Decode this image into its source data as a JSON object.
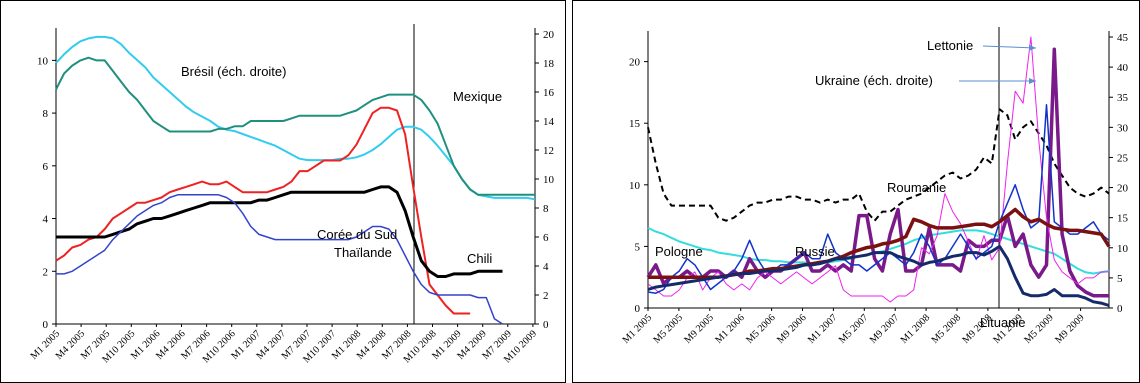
{
  "chart_data": [
    {
      "type": "line",
      "title": "",
      "xlabel": "",
      "ylabel": "",
      "ylim": [
        0,
        11
      ],
      "y2lim": [
        0,
        20
      ],
      "yticks": [
        0,
        2,
        4,
        6,
        8,
        10
      ],
      "y2ticks": [
        0,
        2,
        4,
        6,
        8,
        10,
        12,
        14,
        16,
        18,
        20
      ],
      "x_tick_labels": [
        "M1 2005",
        "M4 2005",
        "M7 2005",
        "M10 2005",
        "M1 2006",
        "M4 2006",
        "M7 2006",
        "M10 2006",
        "M1 2007",
        "M4 2007",
        "M7 2007",
        "M10 2007",
        "M1 2008",
        "M4 2008",
        "M7 2008",
        "M10 2008",
        "M1 2009",
        "M4 2009",
        "M7 2009",
        "M10 2009"
      ],
      "vertical_marker": "M9 2008",
      "grid": false,
      "series": [
        {
          "name": "Brésil (éch. droite)",
          "axis": "right",
          "color": "#33ccee",
          "width": 2,
          "values": [
            18.0,
            18.6,
            19.1,
            19.5,
            19.7,
            19.8,
            19.8,
            19.7,
            19.3,
            18.7,
            18.2,
            17.7,
            17.0,
            16.5,
            16.0,
            15.5,
            15.0,
            14.6,
            14.3,
            14.0,
            13.6,
            13.4,
            13.3,
            13.1,
            12.9,
            12.7,
            12.5,
            12.3,
            12.0,
            11.7,
            11.4,
            11.3,
            11.3,
            11.3,
            11.3,
            11.4,
            11.4,
            11.5,
            11.7,
            12.0,
            12.4,
            12.9,
            13.4,
            13.6,
            13.6,
            13.4,
            12.9,
            12.3,
            11.6,
            10.9,
            10.0,
            9.3,
            8.9,
            8.8,
            8.7,
            8.7,
            8.7,
            8.7,
            8.7,
            8.6
          ]
        },
        {
          "name": "Mexique",
          "axis": "left",
          "color": "#20907e",
          "width": 2,
          "values": [
            8.9,
            9.5,
            9.8,
            10.0,
            10.1,
            10.0,
            10.0,
            9.6,
            9.2,
            8.8,
            8.5,
            8.1,
            7.7,
            7.5,
            7.3,
            7.3,
            7.3,
            7.3,
            7.3,
            7.3,
            7.4,
            7.4,
            7.5,
            7.5,
            7.7,
            7.7,
            7.7,
            7.7,
            7.7,
            7.8,
            7.9,
            7.9,
            7.9,
            7.9,
            7.9,
            7.9,
            8.0,
            8.1,
            8.3,
            8.5,
            8.6,
            8.7,
            8.7,
            8.7,
            8.7,
            8.5,
            8.1,
            7.6,
            6.8,
            6.0,
            5.5,
            5.1,
            4.9,
            4.9,
            4.9,
            4.9,
            4.9,
            4.9,
            4.9,
            4.9
          ]
        },
        {
          "name": "Chili",
          "axis": "left",
          "color": "#ee2222",
          "width": 2,
          "values": [
            2.4,
            2.6,
            2.9,
            3.0,
            3.2,
            3.3,
            3.6,
            4.0,
            4.2,
            4.4,
            4.6,
            4.6,
            4.7,
            4.8,
            5.0,
            5.1,
            5.2,
            5.3,
            5.4,
            5.3,
            5.3,
            5.4,
            5.2,
            5.0,
            5.0,
            5.0,
            5.0,
            5.1,
            5.2,
            5.4,
            5.8,
            5.8,
            6.0,
            6.2,
            6.2,
            6.2,
            6.4,
            6.8,
            7.4,
            8.0,
            8.2,
            8.2,
            8.1,
            7.2,
            5.2,
            3.3,
            1.5,
            1.1,
            0.7,
            0.4,
            0.4,
            0.4
          ]
        },
        {
          "name": "Corée du Sud",
          "axis": "left",
          "color": "#000000",
          "width": 3,
          "values": [
            3.3,
            3.3,
            3.3,
            3.3,
            3.3,
            3.3,
            3.3,
            3.4,
            3.5,
            3.6,
            3.8,
            3.9,
            4.0,
            4.0,
            4.1,
            4.2,
            4.3,
            4.4,
            4.5,
            4.6,
            4.6,
            4.6,
            4.6,
            4.6,
            4.6,
            4.7,
            4.7,
            4.8,
            4.9,
            5.0,
            5.0,
            5.0,
            5.0,
            5.0,
            5.0,
            5.0,
            5.0,
            5.0,
            5.0,
            5.1,
            5.2,
            5.2,
            5.0,
            4.3,
            3.3,
            2.4,
            2.0,
            1.8,
            1.8,
            1.9,
            1.9,
            1.9,
            2.0,
            2.0,
            2.0,
            2.0
          ]
        },
        {
          "name": "Thaïlande",
          "axis": "left",
          "color": "#3344cc",
          "width": 1.5,
          "values": [
            1.9,
            1.9,
            2.0,
            2.2,
            2.4,
            2.6,
            2.8,
            3.2,
            3.5,
            3.8,
            4.1,
            4.3,
            4.5,
            4.6,
            4.8,
            4.9,
            4.9,
            4.9,
            4.9,
            4.9,
            4.9,
            4.8,
            4.6,
            4.2,
            3.7,
            3.4,
            3.3,
            3.2,
            3.2,
            3.2,
            3.2,
            3.2,
            3.2,
            3.2,
            3.2,
            3.2,
            3.2,
            3.3,
            3.5,
            3.7,
            3.7,
            3.6,
            3.2,
            2.6,
            2.0,
            1.5,
            1.2,
            1.1,
            1.1,
            1.1,
            1.1,
            1.1,
            1.0,
            1.0,
            0.2,
            0.0
          ]
        }
      ],
      "annotations": [
        "Brésil (éch. droite)",
        "Mexique",
        "Corée du Sud",
        "Thaïlande",
        "Chili"
      ]
    },
    {
      "type": "line",
      "title": "",
      "xlabel": "",
      "ylabel": "",
      "ylim": [
        0,
        22
      ],
      "y2lim": [
        0,
        45
      ],
      "yticks": [
        0,
        5,
        10,
        15,
        20
      ],
      "y2ticks": [
        0,
        5,
        10,
        15,
        20,
        25,
        30,
        35,
        40,
        45
      ],
      "x_tick_labels": [
        "M1 2005",
        "M5 2005",
        "M9 2005",
        "M1 2006",
        "M5 2006",
        "M9 2006",
        "M1 2007",
        "M5 2007",
        "M9 2007",
        "M1 2008",
        "M5 2008",
        "M9 2008",
        "M1 2009",
        "M5 2009",
        "M9 2009"
      ],
      "vertical_marker": "M9 2008",
      "grid": false,
      "series": [
        {
          "name": "Pologne",
          "axis": "left",
          "color": "#33dddd",
          "width": 2,
          "values": [
            6.5,
            6.2,
            6.0,
            5.7,
            5.4,
            5.2,
            5.0,
            4.8,
            4.7,
            4.5,
            4.4,
            4.3,
            4.2,
            4.0,
            3.9,
            3.9,
            3.8,
            3.8,
            3.7,
            3.7,
            3.7,
            3.6,
            3.6,
            3.7,
            3.8,
            3.9,
            4.0,
            4.2,
            4.3,
            4.5,
            4.6,
            4.8,
            5.0,
            5.2,
            5.5,
            5.7,
            5.9,
            6.0,
            6.1,
            6.2,
            6.3,
            6.3,
            6.3,
            6.2,
            6.0,
            5.8,
            5.6,
            5.4,
            5.2,
            5.0,
            4.8,
            4.6,
            4.4,
            4.0,
            3.6,
            3.2,
            2.9,
            2.8,
            2.9,
            3.0
          ]
        },
        {
          "name": "Roumanie",
          "axis": "right",
          "color": "#000000",
          "dashed": true,
          "width": 2,
          "values": [
            30.0,
            24.0,
            19.0,
            17.0,
            17.0,
            17.0,
            17.0,
            17.0,
            17.0,
            15.0,
            14.5,
            15.0,
            16.0,
            17.0,
            17.5,
            17.5,
            18.0,
            18.0,
            18.5,
            18.5,
            18.0,
            18.0,
            17.5,
            18.0,
            17.5,
            18.0,
            18.0,
            19.0,
            16.0,
            14.5,
            16.0,
            16.0,
            17.0,
            18.0,
            18.5,
            19.0,
            20.0,
            21.0,
            22.0,
            22.5,
            21.5,
            22.0,
            23.0,
            25.0,
            24.0,
            33.0,
            32.0,
            28.0,
            30.0,
            31.0,
            29.0,
            27.0,
            24.0,
            22.0,
            20.0,
            19.0,
            18.5,
            19.0,
            20.0,
            19.0
          ]
        },
        {
          "name": "Lettonie",
          "axis": "left",
          "color": "#7a1a8a",
          "width": 3.5,
          "values": [
            2.5,
            3.5,
            2.0,
            2.5,
            2.5,
            3.0,
            2.5,
            2.5,
            3.0,
            3.0,
            2.5,
            3.0,
            2.5,
            4.0,
            3.0,
            2.5,
            3.0,
            3.0,
            3.5,
            4.0,
            4.5,
            3.0,
            3.0,
            3.5,
            3.0,
            3.5,
            3.0,
            7.5,
            7.5,
            4.0,
            3.0,
            6.0,
            8.0,
            3.0,
            3.0,
            3.5,
            6.5,
            3.5,
            3.5,
            3.5,
            3.0,
            5.5,
            5.0,
            5.0,
            5.5,
            5.5,
            7.5,
            5.0,
            6.0,
            3.5,
            2.5,
            3.5,
            21.0,
            6.0,
            3.0,
            1.8,
            1.3,
            1.0,
            1.0,
            1.0
          ]
        },
        {
          "name": "Ukraine (éch. droite)",
          "axis": "right",
          "color": "#ee22ee",
          "width": 1,
          "values": [
            4,
            3,
            2,
            2,
            3,
            5,
            6,
            3,
            5,
            6,
            4,
            3,
            4,
            3,
            5,
            6,
            5,
            4,
            5,
            6,
            5,
            4,
            5,
            6,
            7,
            3,
            2,
            2,
            2,
            2,
            2,
            1,
            2,
            2,
            3,
            10,
            9,
            12,
            19,
            16,
            14,
            11,
            8,
            12,
            8,
            10,
            24,
            36,
            34,
            45,
            28,
            15,
            8,
            6,
            5,
            4,
            5,
            5,
            6,
            6
          ]
        },
        {
          "name": "Russie",
          "axis": "left",
          "color": "#1133cc",
          "width": 1.5,
          "values": [
            1.3,
            1.2,
            1.5,
            2.5,
            3.0,
            4.0,
            3.5,
            2.5,
            1.5,
            2.0,
            2.5,
            3.0,
            4.0,
            5.5,
            4.0,
            3.0,
            3.0,
            3.5,
            3.5,
            4.0,
            4.5,
            4.0,
            4.0,
            6.0,
            4.5,
            4.0,
            3.5,
            3.5,
            3.0,
            3.5,
            4.0,
            4.5,
            4.0,
            3.5,
            4.5,
            6.0,
            5.0,
            3.5,
            4.0,
            5.0,
            6.0,
            5.0,
            4.0,
            4.5,
            5.0,
            7.0,
            8.5,
            10.0,
            8.0,
            6.5,
            7.0,
            16.5,
            7.0,
            6.5,
            6.0,
            6.0,
            6.5,
            7.0,
            6.0,
            5.5
          ]
        },
        {
          "name": "",
          "axis": "left",
          "color": "#7b1010",
          "width": 3.5,
          "values": [
            2.5,
            2.5,
            2.5,
            2.5,
            2.5,
            2.5,
            2.5,
            2.5,
            2.5,
            2.5,
            2.6,
            2.7,
            2.8,
            3.0,
            3.0,
            3.1,
            3.2,
            3.2,
            3.3,
            3.4,
            3.5,
            3.6,
            3.7,
            3.8,
            4.0,
            4.2,
            4.5,
            4.7,
            4.9,
            5.0,
            5.2,
            5.3,
            5.5,
            5.8,
            7.2,
            7.0,
            6.7,
            6.5,
            6.5,
            6.5,
            6.6,
            6.7,
            6.8,
            6.8,
            6.6,
            7.0,
            7.5,
            8.0,
            7.4,
            7.0,
            7.2,
            6.8,
            6.5,
            6.4,
            6.3,
            6.3,
            6.2,
            6.1,
            6.0,
            5.0
          ]
        },
        {
          "name": "Lituanie",
          "axis": "left",
          "color": "#152a6a",
          "width": 3,
          "values": [
            1.5,
            1.7,
            1.8,
            1.9,
            2.0,
            2.1,
            2.2,
            2.3,
            2.4,
            2.5,
            2.6,
            2.7,
            2.8,
            2.8,
            2.9,
            3.0,
            3.0,
            3.1,
            3.2,
            3.3,
            3.5,
            3.5,
            3.6,
            3.8,
            4.0,
            4.0,
            4.1,
            4.2,
            4.3,
            4.5,
            4.5,
            4.5,
            4.2,
            4.0,
            3.8,
            3.5,
            3.7,
            3.8,
            4.0,
            4.2,
            4.3,
            4.5,
            4.5,
            4.3,
            4.6,
            5.0,
            4.0,
            2.5,
            1.2,
            1.0,
            1.0,
            1.1,
            1.5,
            1.0,
            1.0,
            1.0,
            0.8,
            0.5,
            0.4,
            0.2
          ]
        }
      ],
      "annotations": [
        "Lettonie",
        "Ukraine (éch. droite)",
        "Roumanie",
        "Pologne",
        "Russie",
        "Lituanie"
      ]
    }
  ]
}
